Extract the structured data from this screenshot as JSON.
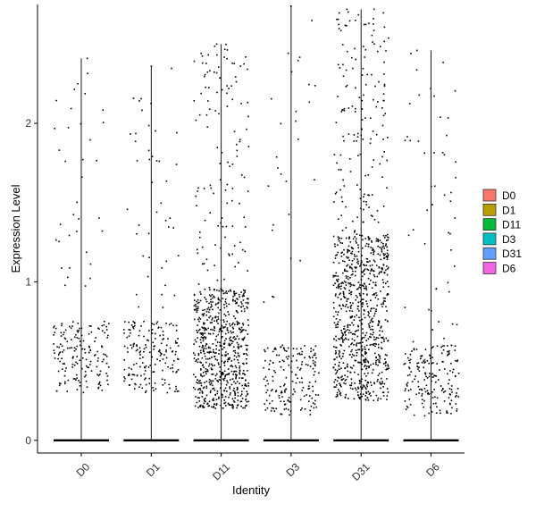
{
  "chart_data": {
    "type": "violin-jitter",
    "xlabel": "Identity",
    "ylabel": "Expression Level",
    "categories": [
      "D0",
      "D1",
      "D11",
      "D3",
      "D31",
      "D6"
    ],
    "ylim": [
      -0.08,
      2.75
    ],
    "yticks": [
      0,
      1,
      2
    ],
    "ytick_labels": [
      "0",
      "1",
      "2"
    ],
    "legend": {
      "placement": "right",
      "items": [
        {
          "label": "D0",
          "color": "#F8766D"
        },
        {
          "label": "D1",
          "color": "#B79F00"
        },
        {
          "label": "D11",
          "color": "#00BA38"
        },
        {
          "label": "D3",
          "color": "#00BFC4"
        },
        {
          "label": "D31",
          "color": "#619CFF"
        },
        {
          "label": "D6",
          "color": "#F564E3"
        }
      ]
    },
    "series": [
      {
        "category": "D0",
        "max": 2.41,
        "nonzero_points": 200,
        "dense_low": 0.3,
        "dense_high": 0.75
      },
      {
        "category": "D1",
        "max": 2.36,
        "nonzero_points": 220,
        "dense_low": 0.3,
        "dense_high": 0.75
      },
      {
        "category": "D11",
        "max": 2.5,
        "nonzero_points": 800,
        "dense_low": 0.2,
        "dense_high": 0.95
      },
      {
        "category": "D3",
        "max": 2.74,
        "nonzero_points": 200,
        "dense_low": 0.15,
        "dense_high": 0.6
      },
      {
        "category": "D31",
        "max": 2.72,
        "nonzero_points": 950,
        "dense_low": 0.25,
        "dense_high": 1.3
      },
      {
        "category": "D6",
        "max": 2.46,
        "nonzero_points": 230,
        "dense_low": 0.15,
        "dense_high": 0.6
      }
    ],
    "zero_value": 0,
    "grid": false
  }
}
